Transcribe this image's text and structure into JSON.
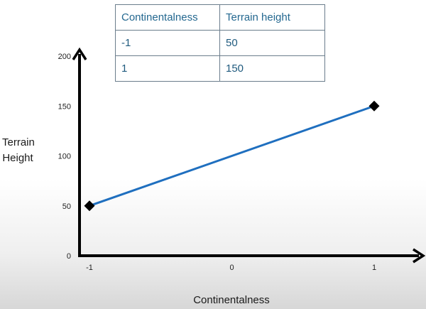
{
  "table": {
    "headers": [
      "Continentalness",
      "Terrain height"
    ],
    "rows": [
      [
        "-1",
        "50"
      ],
      [
        "1",
        "150"
      ]
    ]
  },
  "chart_data": {
    "type": "line",
    "title": "",
    "xlabel": "Continentalness",
    "ylabel_lines": [
      "Terrain",
      "Height"
    ],
    "x_ticks": [
      "-1",
      "0",
      "1"
    ],
    "y_ticks": [
      "0",
      "50",
      "100",
      "150",
      "200"
    ],
    "xlim": [
      -1.05,
      1.1
    ],
    "ylim": [
      0,
      200
    ],
    "series": [
      {
        "x": [
          -1,
          1
        ],
        "y": [
          50,
          150
        ],
        "color": "#1f6fbf"
      }
    ],
    "marker": "diamond",
    "marker_color": "#000000",
    "axis_color": "#000000",
    "grid": false
  }
}
